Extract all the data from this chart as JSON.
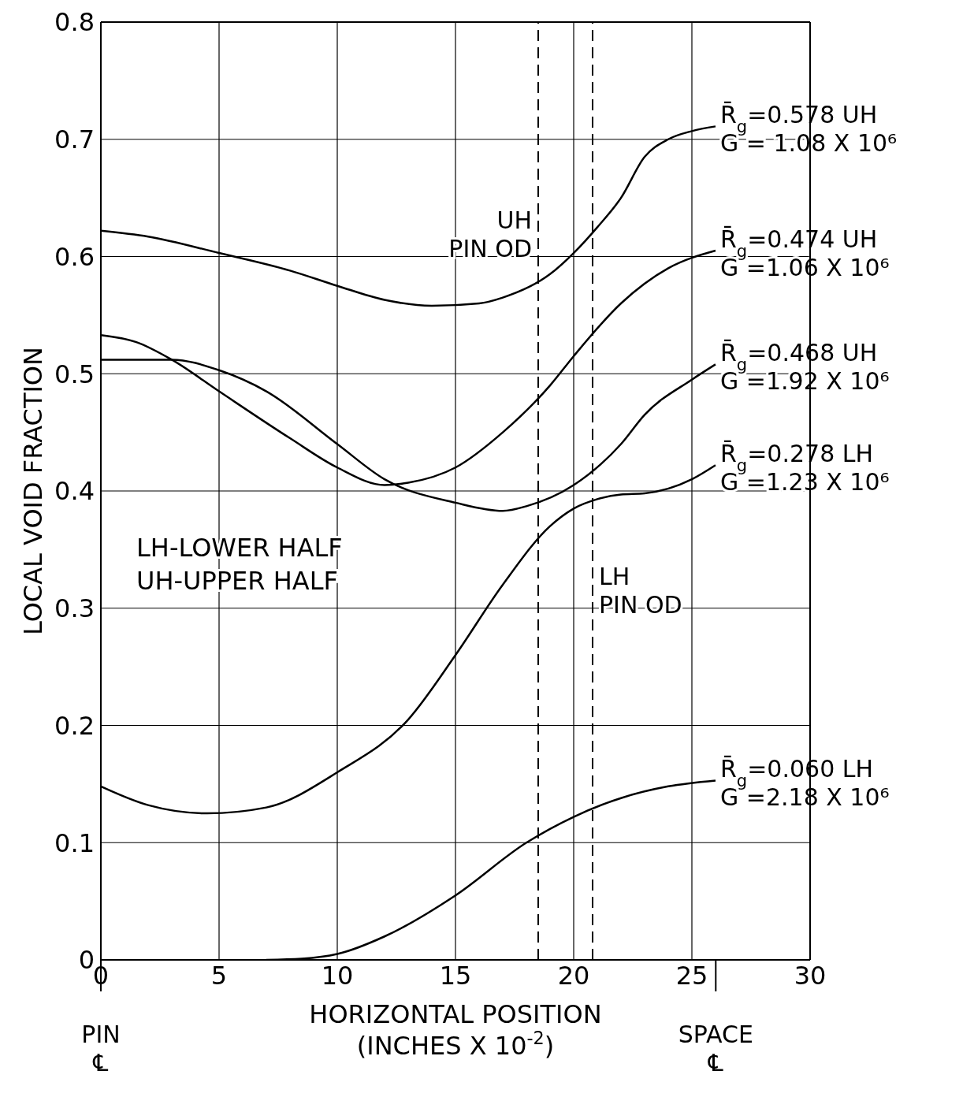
{
  "chart_data": {
    "type": "line",
    "xlabel": "HORIZONTAL POSITION\n(INCHES X 10$^{-2}$)",
    "ylabel": "LOCAL VOID FRACTION",
    "xlim": [
      0,
      30
    ],
    "xticks": [
      0,
      5,
      10,
      15,
      20,
      25,
      30
    ],
    "ylim": [
      0,
      0.8
    ],
    "yticks": [
      0,
      0.1,
      0.2,
      0.3,
      0.4,
      0.5,
      0.6,
      0.7,
      0.8
    ],
    "grid": true,
    "legend": false,
    "marker": "none",
    "line_style": "solid",
    "series": [
      {
        "name": "R̄$_{g}$=0.578 UH\nG = 1.08 X 10⁶",
        "color": "#000000",
        "x": [
          0,
          2,
          5,
          8,
          10,
          12,
          14,
          16,
          17,
          19,
          20,
          21,
          22,
          23,
          24,
          25,
          26
        ],
        "values": [
          0.622,
          0.617,
          0.603,
          0.588,
          0.575,
          0.563,
          0.558,
          0.56,
          0.565,
          0.585,
          0.603,
          0.625,
          0.65,
          0.685,
          0.7,
          0.707,
          0.711
        ]
      },
      {
        "name": "R̄$_{g}$=0.474 UH\nG =1.06 X 10⁶",
        "color": "#000000",
        "x": [
          0,
          1.5,
          3,
          5,
          8,
          10,
          12,
          13,
          15,
          17,
          19,
          20,
          22,
          24,
          26
        ],
        "values": [
          0.533,
          0.527,
          0.512,
          0.485,
          0.445,
          0.42,
          0.405,
          0.407,
          0.42,
          0.45,
          0.49,
          0.515,
          0.56,
          0.59,
          0.605
        ]
      },
      {
        "name": "R̄$_{g}$=0.468 UH\nG =1.92 X 10⁶",
        "color": "#000000",
        "x": [
          0,
          3,
          5,
          7,
          10,
          12,
          15,
          17,
          18,
          20,
          22,
          23,
          25,
          26
        ],
        "values": [
          0.512,
          0.512,
          0.503,
          0.485,
          0.44,
          0.41,
          0.39,
          0.383,
          0.387,
          0.405,
          0.44,
          0.465,
          0.495,
          0.508
        ]
      },
      {
        "name": "R̄$_{g}$=0.278 LH\nG =1.23 X 10⁶",
        "color": "#000000",
        "x": [
          0,
          2,
          4.5,
          7,
          10,
          13,
          15,
          17,
          19,
          20,
          21,
          22,
          23,
          25,
          26
        ],
        "values": [
          0.148,
          0.132,
          0.125,
          0.13,
          0.16,
          0.205,
          0.26,
          0.32,
          0.37,
          0.385,
          0.393,
          0.397,
          0.398,
          0.41,
          0.422
        ]
      },
      {
        "name": "R̄$_{g}$=0.060 LH\nG =2.18 X 10⁶",
        "color": "#000000",
        "x": [
          7,
          8.5,
          10,
          12,
          15,
          18,
          20,
          22,
          24,
          26
        ],
        "values": [
          0,
          0.001,
          0.005,
          0.02,
          0.055,
          0.1,
          0.122,
          0.138,
          0.148,
          0.153
        ]
      }
    ],
    "ref_lines": [
      {
        "axis": "x",
        "value": 18.5,
        "label": "UH\nPIN OD",
        "line_style": "dashed",
        "color": "#000000"
      },
      {
        "axis": "x",
        "value": 20.8,
        "label": "LH\nPIN OD",
        "line_style": "dashed",
        "color": "#000000"
      }
    ],
    "annotations": [
      "LH-LOWER HALF",
      "UH-UPPER HALF",
      "PIN\n℄",
      "SPACE\n℄"
    ]
  }
}
